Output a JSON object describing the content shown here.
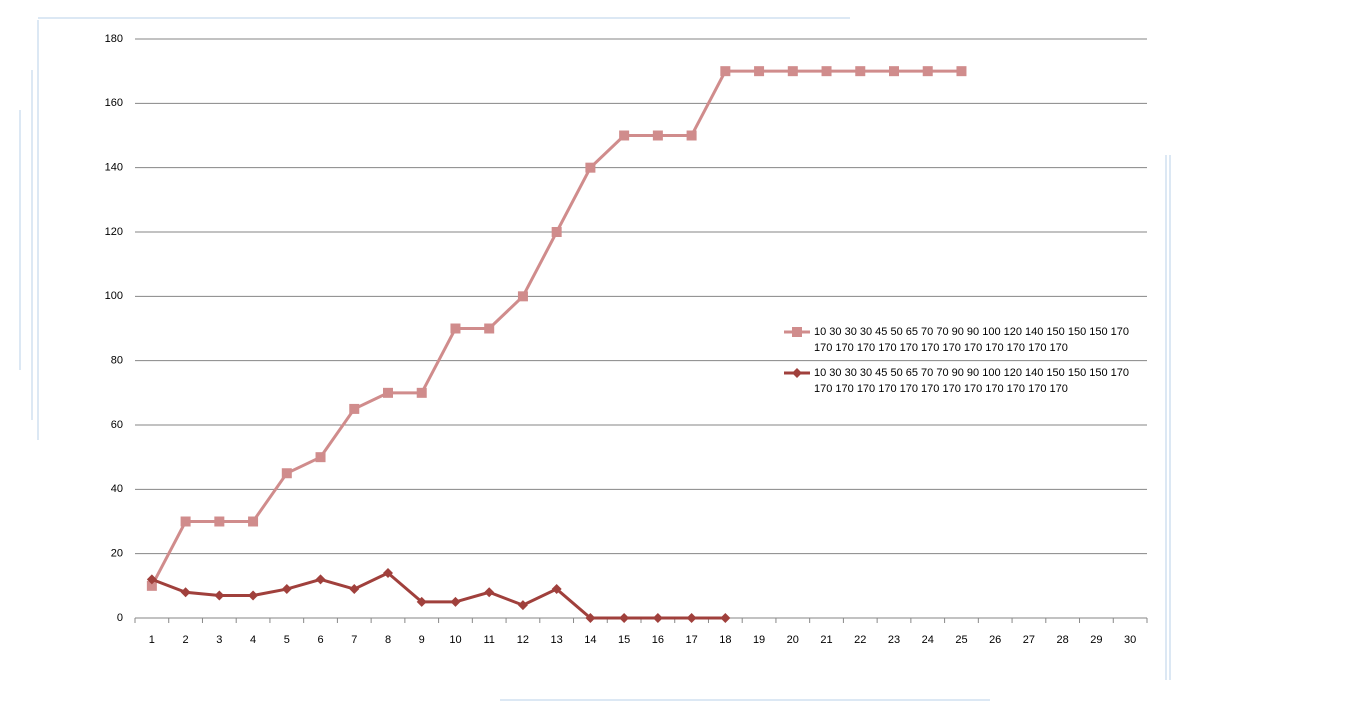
{
  "chart_data": {
    "type": "line",
    "categories": [
      1,
      2,
      3,
      4,
      5,
      6,
      7,
      8,
      9,
      10,
      11,
      12,
      13,
      14,
      15,
      16,
      17,
      18,
      19,
      20,
      21,
      22,
      23,
      24,
      25,
      26,
      27,
      28,
      29,
      30
    ],
    "series": [
      {
        "name": "10 30 30 30 45 50 65 70 70 90 90 100 120 140 150 150 150 170 170 170 170 170 170 170 170 170 170 170 170 170",
        "color": "#d08c8c",
        "marker": "square",
        "values": [
          10,
          30,
          30,
          30,
          45,
          50,
          65,
          70,
          70,
          90,
          90,
          100,
          120,
          140,
          150,
          150,
          150,
          170,
          170,
          170,
          170,
          170,
          170,
          170,
          170,
          null,
          null,
          null,
          null,
          null
        ]
      },
      {
        "name": "10 30 30 30 45 50 65 70 70 90 90 100 120 140 150 150 150 170 170 170 170 170 170 170 170 170 170 170 170 170",
        "color": "#a0403c",
        "marker": "diamond",
        "values": [
          12,
          8,
          7,
          7,
          9,
          12,
          9,
          14,
          5,
          5,
          8,
          4,
          9,
          0,
          0,
          0,
          0,
          0,
          null,
          null,
          null,
          null,
          null,
          null,
          null,
          null,
          null,
          null,
          null,
          null
        ]
      }
    ],
    "ylim": [
      0,
      180
    ],
    "yticks": [
      0,
      20,
      40,
      60,
      80,
      100,
      120,
      140,
      160,
      180
    ],
    "grid": true
  }
}
